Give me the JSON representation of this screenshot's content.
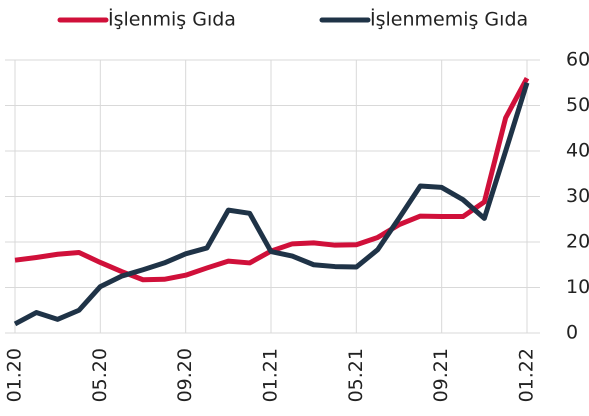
{
  "chart_data": {
    "type": "line",
    "categories": [
      "01.20",
      null,
      null,
      null,
      "05.20",
      null,
      null,
      null,
      "09.20",
      null,
      null,
      null,
      "01.21",
      null,
      null,
      null,
      "05.21",
      null,
      null,
      null,
      "09.21",
      null,
      null,
      null,
      "01.22"
    ],
    "series": [
      {
        "name": "İşlenmiş Gıda",
        "color": "#d0103a",
        "values": [
          16.0,
          16.6,
          17.3,
          17.7,
          15.5,
          13.5,
          11.7,
          11.8,
          12.7,
          14.3,
          15.8,
          15.4,
          18.0,
          19.6,
          19.8,
          19.3,
          19.4,
          21.0,
          23.8,
          25.7,
          25.6,
          25.6,
          28.8,
          47.3,
          56.0
        ]
      },
      {
        "name": "İşlenmemiş Gıda",
        "color": "#1f3347",
        "values": [
          2.0,
          4.5,
          3.0,
          5.0,
          10.2,
          12.5,
          13.9,
          15.4,
          17.4,
          18.7,
          27.0,
          26.3,
          17.9,
          16.9,
          15.0,
          14.6,
          14.5,
          18.3,
          25.2,
          32.3,
          32.0,
          29.3,
          25.2,
          40.0,
          55.0
        ]
      }
    ],
    "ylim": [
      0,
      60
    ],
    "yticks": [
      0,
      10,
      20,
      30,
      40,
      50,
      60
    ],
    "grid": true,
    "legend": "top"
  }
}
